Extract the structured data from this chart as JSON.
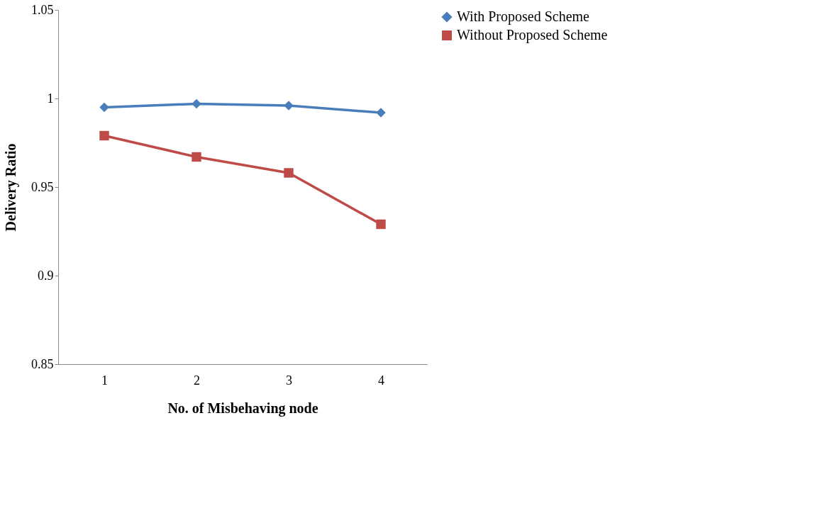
{
  "chart_data": {
    "type": "line",
    "xlabel": "No. of Misbehaving node",
    "ylabel": "Delivery Ratio",
    "categories": [
      "1",
      "2",
      "3",
      "4"
    ],
    "series": [
      {
        "name": "With Proposed Scheme",
        "color": "#4a7ebb",
        "marker": "diamond",
        "values": [
          0.995,
          0.997,
          0.996,
          0.992
        ]
      },
      {
        "name": "Without Proposed Scheme",
        "color": "#be4b48",
        "marker": "square",
        "values": [
          0.979,
          0.967,
          0.958,
          0.929
        ]
      }
    ],
    "ylim": [
      0.85,
      1.05
    ],
    "yticks": [
      0.85,
      0.9,
      0.95,
      1,
      1.05
    ],
    "grid": false,
    "legend": "top right",
    "line_style": "solid"
  }
}
